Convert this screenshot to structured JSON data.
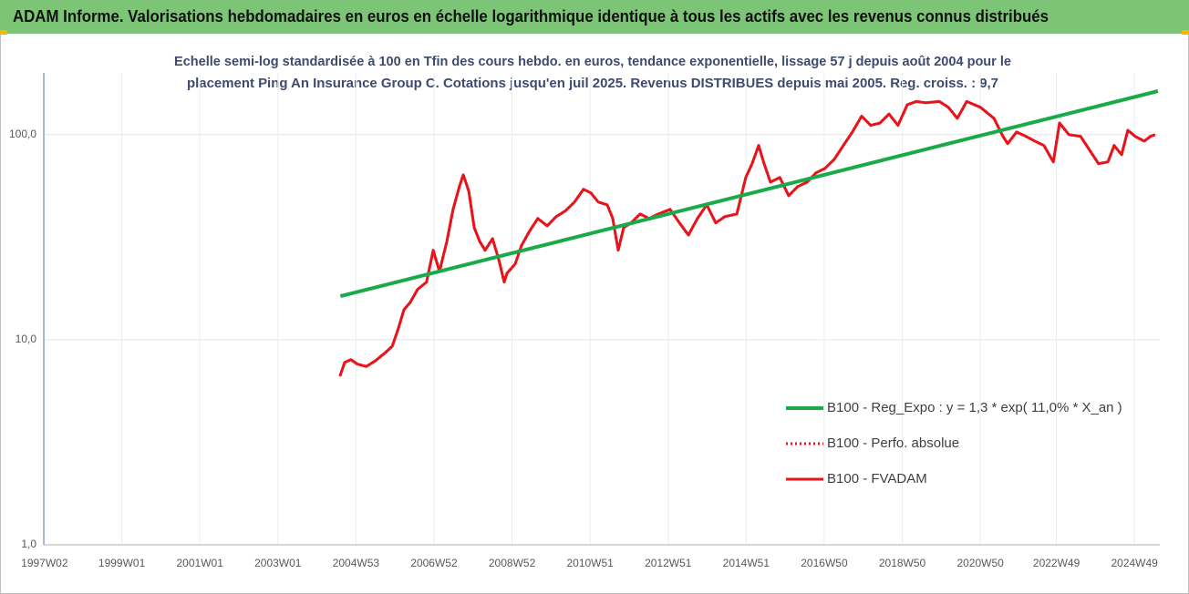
{
  "chart_data": {
    "type": "line",
    "title": "ADAM Informe. Valorisations hebdomadaires en euros en échelle logarithmique identique à tous les actifs avec les revenus connus distribués",
    "subtitle": [
      "Echelle semi-log standardisée à 100 en Tfin des cours hebdo. en euros, tendance exponentielle, lissage 57 j depuis août 2004 pour le",
      "placement Ping An Insurance Group C. Cotations jusqu'en juil 2025. Revenus DISTRIBUES depuis mai 2005. Reg. croiss. : 9,7"
    ],
    "log_y": true,
    "grid": true,
    "legend": "lower right",
    "xlim": [
      1997,
      2025.6
    ],
    "xticks": [
      {
        "value": 1997.02,
        "label": "1997W02"
      },
      {
        "value": 1999,
        "label": "1999W01"
      },
      {
        "value": 2001,
        "label": "2001W01"
      },
      {
        "value": 2003,
        "label": "2003W01"
      },
      {
        "value": 2005,
        "label": "2004W53"
      },
      {
        "value": 2007,
        "label": "2006W52"
      },
      {
        "value": 2009,
        "label": "2008W52"
      },
      {
        "value": 2011,
        "label": "2010W51"
      },
      {
        "value": 2013,
        "label": "2012W51"
      },
      {
        "value": 2015,
        "label": "2014W51"
      },
      {
        "value": 2017,
        "label": "2016W50"
      },
      {
        "value": 2019,
        "label": "2018W50"
      },
      {
        "value": 2021,
        "label": "2020W50"
      },
      {
        "value": 2022.95,
        "label": "2022W49"
      },
      {
        "value": 2024.95,
        "label": "2024W49"
      }
    ],
    "ylim": [
      1,
      200
    ],
    "yticks": [
      {
        "value": 1,
        "label": "1,0"
      },
      {
        "value": 10,
        "label": "10,0"
      },
      {
        "value": 100,
        "label": "100,0"
      }
    ],
    "series": [
      {
        "name": "B100 - Reg_Expo : y = 1,3 * exp( 11,0% *  X_an )",
        "color": "#1aaa4a",
        "style": "solid",
        "width": 4,
        "x": [
          2004.6,
          2025.55
        ],
        "values": [
          16.3,
          163
        ]
      },
      {
        "name": "B100 - Perfo. absolue",
        "color": "#e8141b",
        "style": "dotted",
        "width": 3,
        "x": [
          2004.59,
          2004.71,
          2004.87,
          2005.04,
          2005.27,
          2005.5,
          2005.74,
          2005.93,
          2006.09,
          2006.23,
          2006.39,
          2006.58,
          2006.81,
          2006.98,
          2007.14,
          2007.33,
          2007.49,
          2007.65,
          2007.75,
          2007.89,
          2008.03,
          2008.17,
          2008.31,
          2008.5,
          2008.66,
          2008.8,
          2008.87,
          2009.08,
          2009.24,
          2009.43,
          2009.66,
          2009.9,
          2010.13,
          2010.36,
          2010.6,
          2010.83,
          2011.02,
          2011.21,
          2011.44,
          2011.58,
          2011.72,
          2011.86,
          2012.05,
          2012.28,
          2012.51,
          2012.75,
          2013.05,
          2013.29,
          2013.52,
          2013.75,
          2013.99,
          2014.22,
          2014.45,
          2014.76,
          2014.99,
          2015.15,
          2015.32,
          2015.46,
          2015.62,
          2015.86,
          2016.09,
          2016.32,
          2016.56,
          2016.79,
          2017.02,
          2017.26,
          2017.49,
          2017.72,
          2017.96,
          2018.19,
          2018.43,
          2018.66,
          2018.89,
          2019.13,
          2019.36,
          2019.6,
          2019.95,
          2020.18,
          2020.41,
          2020.65,
          2021.0,
          2021.35,
          2021.58,
          2021.7,
          2021.93,
          2022.17,
          2022.4,
          2022.63,
          2022.87,
          2023.03,
          2023.27,
          2023.57,
          2023.8,
          2024.03,
          2024.27,
          2024.43,
          2024.62,
          2024.78,
          2024.97,
          2025.2,
          2025.36,
          2025.48
        ],
        "values": [
          6.64,
          7.74,
          8.0,
          7.6,
          7.4,
          7.9,
          8.6,
          9.3,
          11.4,
          14.0,
          15.2,
          17.6,
          19.1,
          27.3,
          21.5,
          30.2,
          43.2,
          55.8,
          63.7,
          53,
          35.2,
          30.2,
          27.3,
          31.1,
          24.6,
          19.1,
          21.1,
          23.4,
          28.7,
          33.4,
          39,
          35.9,
          39.8,
          42.4,
          46.9,
          54.1,
          52,
          46.9,
          45.5,
          39,
          27.3,
          35.2,
          37.1,
          41,
          39,
          41,
          43.2,
          37.1,
          32.4,
          39,
          45.5,
          37.1,
          39.8,
          41,
          61.8,
          72.1,
          88.5,
          72.1,
          58.7,
          61.8,
          50.4,
          55.8,
          58.7,
          65.1,
          68.5,
          75.9,
          88.5,
          103,
          123,
          111,
          114,
          126,
          111,
          140,
          145,
          143,
          145,
          136,
          120,
          145,
          136,
          120,
          98,
          90.3,
          103,
          98,
          93,
          88.5,
          73.6,
          114,
          100,
          98,
          84,
          72.1,
          73.6,
          88.5,
          79.8,
          105,
          98,
          93,
          98,
          100
        ]
      },
      {
        "name": "B100 - FVADAM",
        "color": "#e8141b",
        "style": "solid",
        "width": 3,
        "x": [
          2004.59,
          2004.71,
          2004.87,
          2005.04,
          2005.27,
          2005.5,
          2005.74,
          2005.93,
          2006.09,
          2006.23,
          2006.39,
          2006.58,
          2006.81,
          2006.98,
          2007.14,
          2007.33,
          2007.49,
          2007.65,
          2007.75,
          2007.89,
          2008.03,
          2008.17,
          2008.31,
          2008.5,
          2008.66,
          2008.8,
          2008.87,
          2009.08,
          2009.24,
          2009.43,
          2009.66,
          2009.9,
          2010.13,
          2010.36,
          2010.6,
          2010.83,
          2011.02,
          2011.21,
          2011.44,
          2011.58,
          2011.72,
          2011.86,
          2012.05,
          2012.28,
          2012.51,
          2012.75,
          2013.05,
          2013.29,
          2013.52,
          2013.75,
          2013.99,
          2014.22,
          2014.45,
          2014.76,
          2014.99,
          2015.15,
          2015.32,
          2015.46,
          2015.62,
          2015.86,
          2016.09,
          2016.32,
          2016.56,
          2016.79,
          2017.02,
          2017.26,
          2017.49,
          2017.72,
          2017.96,
          2018.19,
          2018.43,
          2018.66,
          2018.89,
          2019.13,
          2019.36,
          2019.6,
          2019.95,
          2020.18,
          2020.41,
          2020.65,
          2021.0,
          2021.35,
          2021.58,
          2021.7,
          2021.93,
          2022.17,
          2022.4,
          2022.63,
          2022.87,
          2023.03,
          2023.27,
          2023.57,
          2023.8,
          2024.03,
          2024.27,
          2024.43,
          2024.62,
          2024.78,
          2024.97,
          2025.2,
          2025.36,
          2025.48
        ],
        "values": [
          6.64,
          7.74,
          8.0,
          7.6,
          7.4,
          7.9,
          8.6,
          9.3,
          11.4,
          14.0,
          15.2,
          17.6,
          19.1,
          27.3,
          21.5,
          30.2,
          43.2,
          55.8,
          63.7,
          53,
          35.2,
          30.2,
          27.3,
          31.1,
          24.6,
          19.1,
          21.1,
          23.4,
          28.7,
          33.4,
          39,
          35.9,
          39.8,
          42.4,
          46.9,
          54.1,
          52,
          46.9,
          45.5,
          39,
          27.3,
          35.2,
          37.1,
          41,
          39,
          41,
          43.2,
          37.1,
          32.4,
          39,
          45.5,
          37.1,
          39.8,
          41,
          61.8,
          72.1,
          88.5,
          72.1,
          58.7,
          61.8,
          50.4,
          55.8,
          58.7,
          65.1,
          68.5,
          75.9,
          88.5,
          103,
          123,
          111,
          114,
          126,
          111,
          140,
          145,
          143,
          145,
          136,
          120,
          145,
          136,
          120,
          98,
          90.3,
          103,
          98,
          93,
          88.5,
          73.6,
          114,
          100,
          98,
          84,
          72.1,
          73.6,
          88.5,
          79.8,
          105,
          98,
          93,
          98,
          100
        ]
      }
    ]
  }
}
